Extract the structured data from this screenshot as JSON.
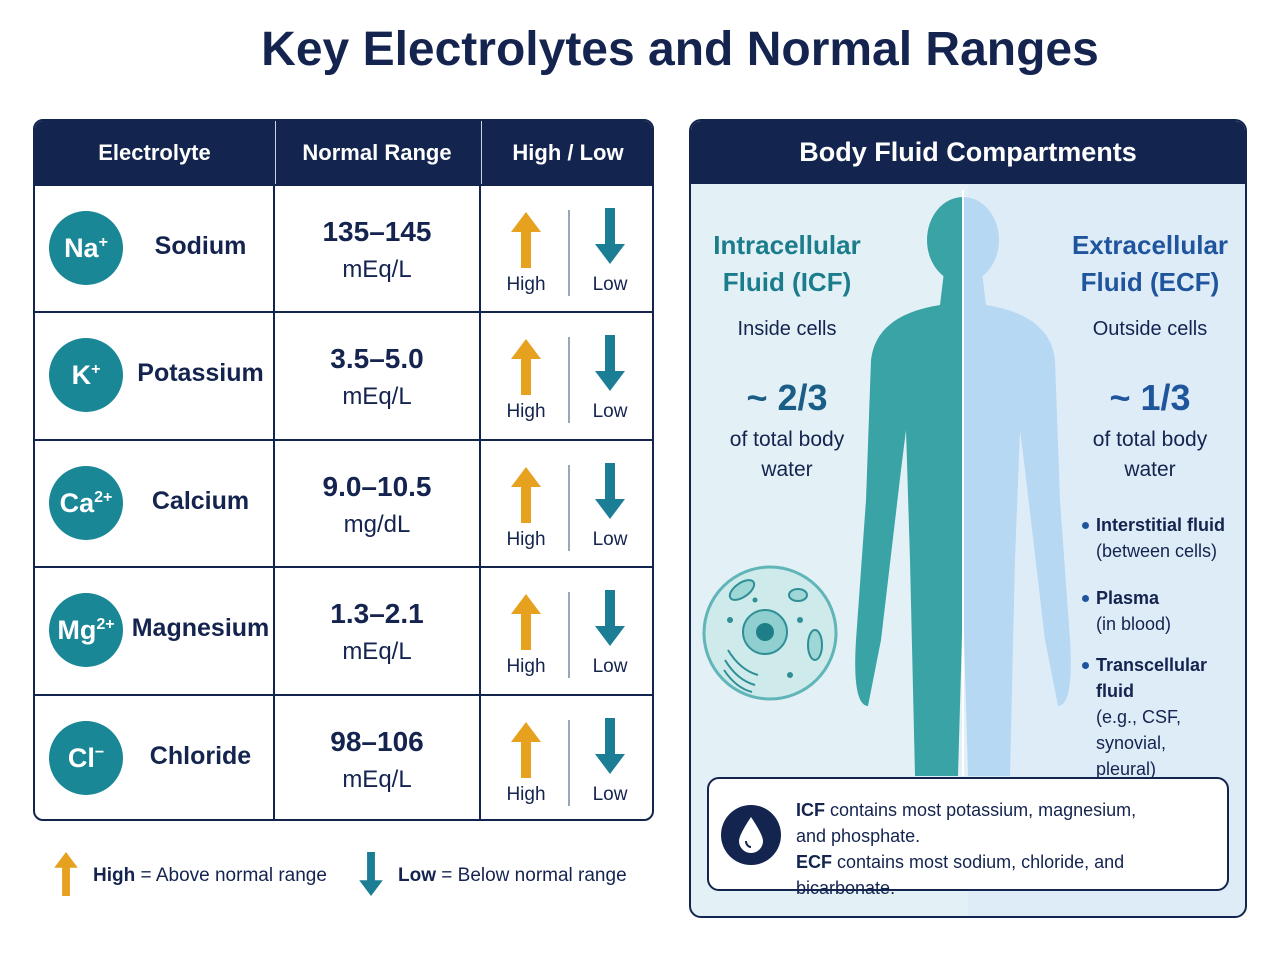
{
  "header": {
    "title": "Key Electrolytes and Normal Ranges"
  },
  "table": {
    "columns": [
      "Electrolyte",
      "Normal Range",
      "High / Low"
    ],
    "rows": [
      {
        "symbol": "Na",
        "charge": "+",
        "name": "Sodium",
        "range": "135–145",
        "unit": "mEq/L",
        "high": "High",
        "low": "Low"
      },
      {
        "symbol": "K",
        "charge": "+",
        "name": "Potassium",
        "range": "3.5–5.0",
        "unit": "mEq/L",
        "high": "High",
        "low": "Low"
      },
      {
        "symbol": "Ca",
        "charge": "2+",
        "name": "Calcium",
        "range": "9.0–10.5",
        "unit": "mg/dL",
        "high": "High",
        "low": "Low"
      },
      {
        "symbol": "Mg",
        "charge": "2+",
        "name": "Magnesium",
        "range": "1.3–2.1",
        "unit": "mEq/L",
        "high": "High",
        "low": "Low"
      },
      {
        "symbol": "Cl",
        "charge": "−",
        "name": "Chloride",
        "range": "98–106",
        "unit": "mEq/L",
        "high": "High",
        "low": "Low"
      }
    ]
  },
  "legend": [
    {
      "term": "High",
      "definition": "= Above normal range"
    },
    {
      "term": "Low",
      "definition": "= Below normal range"
    }
  ],
  "fluid_panel": {
    "title": "Body Fluid Compartments",
    "icf": {
      "title": [
        "Intracellular",
        "Fluid (ICF)"
      ],
      "location": "Inside cells",
      "fraction": "~ 2/3",
      "description": [
        "of total body",
        "water"
      ]
    },
    "ecf": {
      "title": [
        "Extracellular",
        "Fluid (ECF)"
      ],
      "location": "Outside cells",
      "fraction": "~ 1/3",
      "description": [
        "of total body",
        "water"
      ],
      "components": [
        {
          "name": "Interstitial fluid",
          "detail": [
            "(between cells)"
          ]
        },
        {
          "name": "Plasma",
          "detail": [
            "(in blood)"
          ]
        },
        {
          "name": "Transcellular fluid",
          "detail": [
            "(e.g., CSF, synovial,",
            "pleural)"
          ]
        }
      ]
    },
    "note": [
      {
        "term": "ICF",
        "text": [
          "contains most potassium, magnesium,",
          "and phosphate."
        ]
      },
      {
        "term": "ECF",
        "text": [
          "contains most sodium, chloride, and bicarbonate."
        ]
      }
    ]
  }
}
